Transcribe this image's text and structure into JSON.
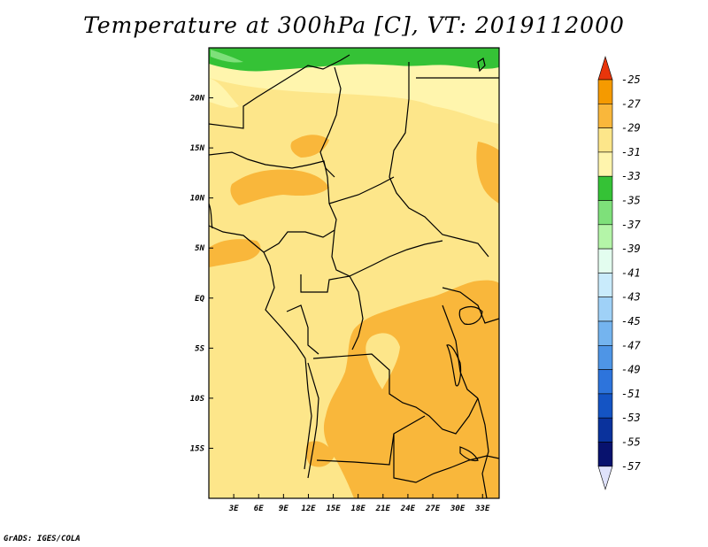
{
  "title": "Temperature at 300hPa [C], VT: 2019112000",
  "credit": "GrADS: IGES/COLA",
  "map": {
    "lon_range": [
      0,
      35
    ],
    "lat_range": [
      -20,
      25
    ],
    "x_ticks": [
      {
        "value": 3,
        "label": "3E"
      },
      {
        "value": 6,
        "label": "6E"
      },
      {
        "value": 9,
        "label": "9E"
      },
      {
        "value": 12,
        "label": "12E"
      },
      {
        "value": 15,
        "label": "15E"
      },
      {
        "value": 18,
        "label": "18E"
      },
      {
        "value": 21,
        "label": "21E"
      },
      {
        "value": 24,
        "label": "24E"
      },
      {
        "value": 27,
        "label": "27E"
      },
      {
        "value": 30,
        "label": "30E"
      },
      {
        "value": 33,
        "label": "33E"
      }
    ],
    "y_ticks": [
      {
        "value": 20,
        "label": "20N"
      },
      {
        "value": 15,
        "label": "15N"
      },
      {
        "value": 10,
        "label": "10N"
      },
      {
        "value": 5,
        "label": "5N"
      },
      {
        "value": 0,
        "label": "EQ"
      },
      {
        "value": -5,
        "label": "5S"
      },
      {
        "value": -10,
        "label": "10S"
      },
      {
        "value": -15,
        "label": "15S"
      }
    ],
    "colors": {
      "band_33_31": "#fde68a",
      "band_31_29": "#f9b73b",
      "band_35_33": "#fff5ad",
      "band_37_35": "#35c236",
      "band_39_37": "#7ee07a",
      "border": "#000000"
    }
  },
  "colorbar": {
    "levels": [
      {
        "label": "-25",
        "color": "#f05f07"
      },
      {
        "label": "-27",
        "color": "#f59a00"
      },
      {
        "label": "-29",
        "color": "#f9b73b"
      },
      {
        "label": "-31",
        "color": "#fde68a"
      },
      {
        "label": "-33",
        "color": "#fff5ad"
      },
      {
        "label": "-35",
        "color": "#35c236"
      },
      {
        "label": "-37",
        "color": "#7ee07a"
      },
      {
        "label": "-39",
        "color": "#b4f5a8"
      },
      {
        "label": "-41",
        "color": "#e3fdef"
      },
      {
        "label": "-43",
        "color": "#c9ebfc"
      },
      {
        "label": "-45",
        "color": "#9fd1f7"
      },
      {
        "label": "-47",
        "color": "#74b4ef"
      },
      {
        "label": "-49",
        "color": "#4e95e6"
      },
      {
        "label": "-51",
        "color": "#2d74dc"
      },
      {
        "label": "-53",
        "color": "#1454c4"
      },
      {
        "label": "-55",
        "color": "#0a329c"
      },
      {
        "label": "-57",
        "color": ""
      }
    ],
    "top_arrow_color": "#e8350b",
    "bottom_arrow_color": "#dfe2fb",
    "last_box_color": "#08126e"
  }
}
